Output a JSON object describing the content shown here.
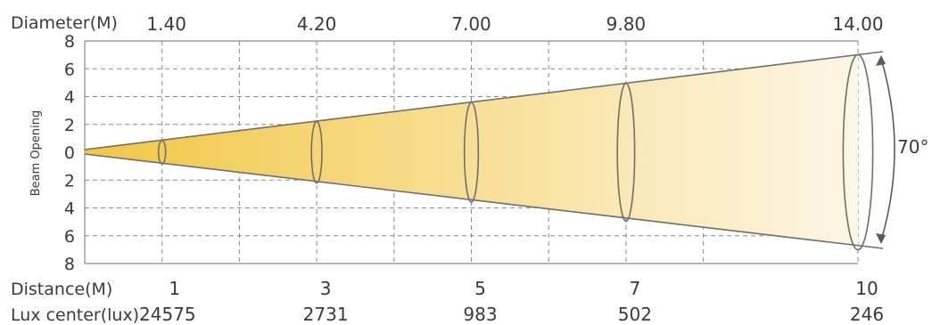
{
  "diagram": {
    "diameter_label": "Diameter(M)",
    "diameters": [
      "1.40",
      "4.20",
      "7.00",
      "9.80",
      "14.00"
    ],
    "distance_label": "Distance(M)",
    "distances": [
      "1",
      "3",
      "5",
      "7",
      "10"
    ],
    "lux_label": "Lux center(lux)",
    "lux_values": [
      "24575",
      "2731",
      "983",
      "502",
      "246"
    ],
    "beam_angle": "70°",
    "y_axis_label": "Beam Opening",
    "y_ticks": [
      "8",
      "6",
      "4",
      "2",
      "0",
      "2",
      "4",
      "6",
      "8"
    ]
  },
  "chart_data": {
    "type": "beam-diagram",
    "x": [
      1,
      3,
      5,
      7,
      10
    ],
    "diameter_m": [
      1.4,
      4.2,
      7.0,
      9.8,
      14.0
    ],
    "lux_center": [
      24575,
      2731,
      983,
      502,
      246
    ],
    "beam_angle_deg": 70,
    "x_range": [
      0,
      10
    ],
    "y_range": [
      -8,
      8
    ],
    "grid": true
  },
  "colors": {
    "beam_start": "#f2c744",
    "beam_end": "#fdf6e6",
    "outline": "#6f6f6f",
    "grid": "#8a8a8a"
  }
}
